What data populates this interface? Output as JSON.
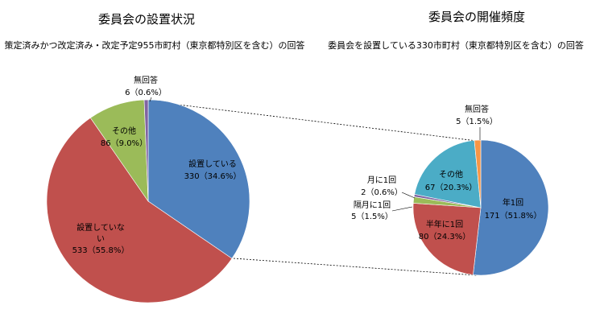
{
  "chart_data": [
    {
      "type": "pie",
      "title": "委員会の設置状況",
      "subtitle": "策定済みかつ改定済み・改定予定955市町村（東京都特別区を含む）の回答",
      "slices": [
        {
          "label": "設置している",
          "value": 330,
          "pct": "34.6%",
          "color": "#4f81bd"
        },
        {
          "label": "設置していな",
          "label2": "い",
          "value": 533,
          "pct": "55.8%",
          "color": "#c0504d"
        },
        {
          "label": "その他",
          "value": 86,
          "pct": "9.0%",
          "color": "#9bbb59"
        },
        {
          "label": "無回答",
          "value": 6,
          "pct": "0.6%",
          "color": "#8064a2"
        }
      ]
    },
    {
      "type": "pie",
      "title": "委員会の開催頻度",
      "subtitle": "委員会を設置している330市町村（東京都特別区を含む）の回答",
      "slices": [
        {
          "label": "年1回",
          "value": 171,
          "pct": "51.8%",
          "color": "#4f81bd"
        },
        {
          "label": "半年に1回",
          "value": 80,
          "pct": "24.3%",
          "color": "#c0504d"
        },
        {
          "label": "隔月に1回",
          "value": 5,
          "pct": "1.5%",
          "color": "#9bbb59"
        },
        {
          "label": "月に1回",
          "value": 2,
          "pct": "0.6%",
          "color": "#8064a2"
        },
        {
          "label": "その他",
          "value": 67,
          "pct": "20.3%",
          "color": "#4bacc6"
        },
        {
          "label": "無回答",
          "value": 5,
          "pct": "1.5%",
          "color": "#f79646"
        }
      ]
    }
  ]
}
